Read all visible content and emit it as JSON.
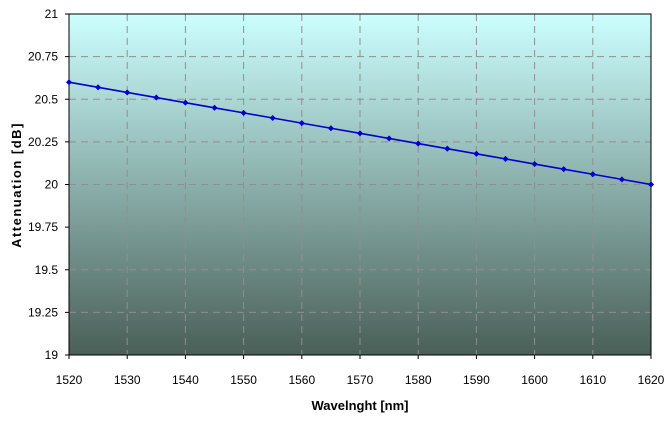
{
  "chart_data": {
    "type": "line",
    "xlabel": "Wavelnght [nm]",
    "ylabel": "Attenuation [dB]",
    "xlim": [
      1520,
      1620
    ],
    "ylim": [
      19,
      21
    ],
    "x_ticks": [
      "1520",
      "1530",
      "1540",
      "1550",
      "1560",
      "1570",
      "1580",
      "1590",
      "1600",
      "1610",
      "1620"
    ],
    "y_ticks": [
      "19",
      "19.25",
      "19.5",
      "19.75",
      "20",
      "20.25",
      "20.5",
      "20.75",
      "21"
    ],
    "grid": true,
    "legend": "none",
    "background_gradient": {
      "top": "#ccffff",
      "bottom": "#4a5f57"
    },
    "series": [
      {
        "color": "#0000cc",
        "marker": "diamond",
        "x": [
          1520,
          1525,
          1530,
          1535,
          1540,
          1545,
          1550,
          1555,
          1560,
          1565,
          1570,
          1575,
          1580,
          1585,
          1590,
          1595,
          1600,
          1605,
          1610,
          1615,
          1620
        ],
        "y": [
          20.6,
          20.57,
          20.54,
          20.51,
          20.48,
          20.45,
          20.42,
          20.39,
          20.36,
          20.33,
          20.3,
          20.27,
          20.24,
          20.21,
          20.18,
          20.15,
          20.12,
          20.09,
          20.06,
          20.03,
          20.0
        ]
      }
    ]
  }
}
